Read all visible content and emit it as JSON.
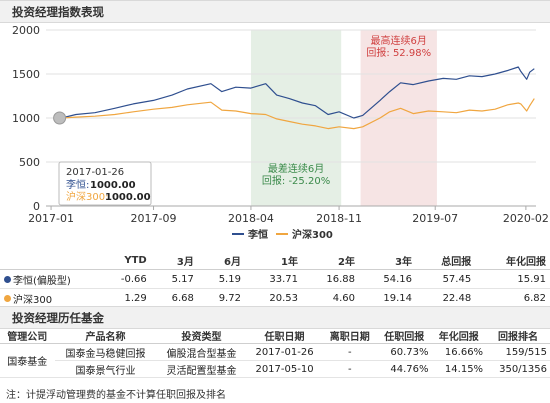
{
  "section1_title": "投资经理指数表现",
  "section2_title": "投资经理历任基金",
  "colors": {
    "manager": "#2f4f8f",
    "index": "#f0a640",
    "best_band": "#f6e4e4",
    "worst_band": "#e5efe5",
    "best_text": "#d04040",
    "worst_text": "#3a8a4a"
  },
  "chart_data": {
    "type": "line",
    "x_ticks": [
      "2017-01",
      "2017-09",
      "2018-04",
      "2018-11",
      "2019-07",
      "2020-02"
    ],
    "x_range": [
      "2016-12-20",
      "2020-02-25"
    ],
    "y_ticks": [
      "0",
      "500",
      "1000",
      "1500",
      "2000"
    ],
    "ylim": [
      0,
      2000
    ],
    "series": [
      {
        "name": "李恒",
        "color": "#2f4f8f",
        "points": [
          [
            "2017-01-26",
            1000
          ],
          [
            "2017-03-01",
            1040
          ],
          [
            "2017-04-15",
            1060
          ],
          [
            "2017-06-01",
            1110
          ],
          [
            "2017-07-15",
            1160
          ],
          [
            "2017-09-01",
            1200
          ],
          [
            "2017-10-15",
            1260
          ],
          [
            "2017-11-20",
            1330
          ],
          [
            "2018-01-15",
            1390
          ],
          [
            "2018-02-10",
            1300
          ],
          [
            "2018-03-15",
            1350
          ],
          [
            "2018-04-20",
            1340
          ],
          [
            "2018-05-25",
            1390
          ],
          [
            "2018-06-20",
            1260
          ],
          [
            "2018-07-20",
            1220
          ],
          [
            "2018-08-20",
            1170
          ],
          [
            "2018-09-20",
            1140
          ],
          [
            "2018-10-20",
            1040
          ],
          [
            "2018-11-15",
            1070
          ],
          [
            "2018-12-20",
            1000
          ],
          [
            "2019-01-10",
            1030
          ],
          [
            "2019-02-20",
            1200
          ],
          [
            "2019-03-15",
            1300
          ],
          [
            "2019-04-10",
            1400
          ],
          [
            "2019-05-10",
            1380
          ],
          [
            "2019-06-15",
            1420
          ],
          [
            "2019-07-20",
            1450
          ],
          [
            "2019-08-20",
            1440
          ],
          [
            "2019-09-20",
            1480
          ],
          [
            "2019-10-20",
            1470
          ],
          [
            "2019-11-20",
            1500
          ],
          [
            "2019-12-20",
            1540
          ],
          [
            "2020-01-14",
            1580
          ],
          [
            "2020-01-20",
            1530
          ],
          [
            "2020-02-03",
            1440
          ],
          [
            "2020-02-10",
            1520
          ],
          [
            "2020-02-21",
            1560
          ]
        ]
      },
      {
        "name": "沪深300",
        "color": "#f0a640",
        "points": [
          [
            "2017-01-26",
            1000
          ],
          [
            "2017-03-01",
            1010
          ],
          [
            "2017-04-15",
            1020
          ],
          [
            "2017-06-01",
            1040
          ],
          [
            "2017-07-15",
            1070
          ],
          [
            "2017-09-01",
            1100
          ],
          [
            "2017-10-15",
            1120
          ],
          [
            "2017-11-20",
            1150
          ],
          [
            "2018-01-15",
            1180
          ],
          [
            "2018-02-10",
            1090
          ],
          [
            "2018-03-15",
            1080
          ],
          [
            "2018-04-20",
            1050
          ],
          [
            "2018-05-25",
            1040
          ],
          [
            "2018-06-20",
            990
          ],
          [
            "2018-07-20",
            960
          ],
          [
            "2018-08-20",
            930
          ],
          [
            "2018-09-20",
            910
          ],
          [
            "2018-10-20",
            880
          ],
          [
            "2018-11-15",
            900
          ],
          [
            "2018-12-20",
            880
          ],
          [
            "2019-01-10",
            900
          ],
          [
            "2019-02-20",
            1000
          ],
          [
            "2019-03-15",
            1070
          ],
          [
            "2019-04-10",
            1110
          ],
          [
            "2019-05-10",
            1050
          ],
          [
            "2019-06-15",
            1080
          ],
          [
            "2019-07-20",
            1070
          ],
          [
            "2019-08-20",
            1060
          ],
          [
            "2019-09-20",
            1090
          ],
          [
            "2019-10-20",
            1080
          ],
          [
            "2019-11-20",
            1100
          ],
          [
            "2019-12-20",
            1150
          ],
          [
            "2020-01-14",
            1170
          ],
          [
            "2020-01-20",
            1160
          ],
          [
            "2020-02-03",
            1080
          ],
          [
            "2020-02-10",
            1140
          ],
          [
            "2020-02-21",
            1220
          ]
        ]
      }
    ],
    "bands": [
      {
        "from": "2018-04-20",
        "to": "2018-11-20",
        "kind": "worst",
        "label": "最差连续6月",
        "value_label": "回报: -25.20%"
      },
      {
        "from": "2019-01-05",
        "to": "2019-07-05",
        "kind": "best",
        "label": "最高连续6月",
        "value_label": "回报: 52.98%"
      }
    ],
    "tooltip": {
      "date": "2017-01-26",
      "rows": [
        {
          "label": "李恒:",
          "value": "1000.00"
        },
        {
          "label": "沪深300:",
          "value": "1000.00"
        }
      ]
    },
    "legend": [
      "李恒",
      "沪深300"
    ],
    "legend_position": "bottom"
  },
  "perf_table": {
    "headers": [
      "",
      "YTD",
      "3月",
      "6月",
      "1年",
      "2年",
      "3年",
      "总回报",
      "年化回报"
    ],
    "rows": [
      {
        "name": "李恒(偏股型)",
        "color": "#2f4f8f",
        "values": [
          "-0.66",
          "5.17",
          "5.19",
          "33.71",
          "16.88",
          "54.16",
          "57.45",
          "15.91"
        ]
      },
      {
        "name": "沪深300",
        "color": "#f0a640",
        "values": [
          "1.29",
          "6.68",
          "9.72",
          "20.53",
          "4.60",
          "19.14",
          "22.48",
          "6.82"
        ]
      }
    ]
  },
  "fund_table": {
    "headers": [
      "管理公司",
      "产品名称",
      "投资类型",
      "任职日期",
      "离职日期",
      "任职回报",
      "年化回报",
      "回报排名"
    ],
    "company": "国泰基金",
    "rows": [
      [
        "国泰金马稳健回报",
        "偏股混合型基金",
        "2017-01-26",
        "-",
        "60.73%",
        "16.66%",
        "159/515"
      ],
      [
        "国泰景气行业",
        "灵活配置型基金",
        "2017-05-10",
        "-",
        "44.76%",
        "14.15%",
        "350/1356"
      ]
    ]
  },
  "note": "注：计提浮动管理费的基金不计算任职回报及排名"
}
